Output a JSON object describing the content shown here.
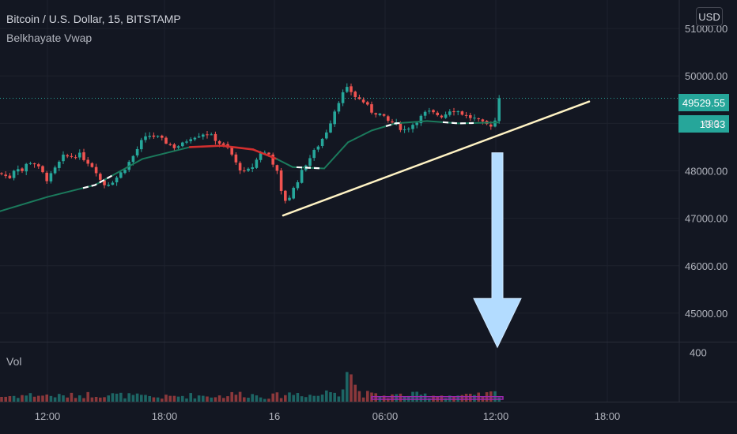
{
  "header": {
    "title": "Bitcoin / U.S. Dollar, 15, BITSTAMP",
    "indicator": "Belkhayate Vwap",
    "currency": "USD"
  },
  "volume_label": "Vol",
  "last_price_tag": "49529.55",
  "countdown_tag": "13:33",
  "countdown_hidden_price": "490",
  "colors": {
    "background": "#131722",
    "up": "#26a69a",
    "down": "#ef5350",
    "vwap_down": "#d32f2f",
    "trendline": "#fff3c4",
    "arrow": "#b3dcff"
  },
  "chart_data": {
    "type": "candlestick",
    "title": "Bitcoin / U.S. Dollar, 15, BITSTAMP",
    "price_axis": {
      "ticks": [
        "51000.00",
        "50000.00",
        "49000.00",
        "48000.00",
        "47000.00",
        "46000.00",
        "45000.00"
      ],
      "range": [
        44400,
        51600
      ],
      "last_price": 49529.55
    },
    "volume_axis": {
      "ticks": [
        "400"
      ],
      "range": [
        0,
        480
      ]
    },
    "time_axis": {
      "ticks": [
        "12:00",
        "18:00",
        "16",
        "06:00",
        "12:00",
        "18:00"
      ]
    },
    "price_path": [
      [
        0,
        47950
      ],
      [
        12,
        47850
      ],
      [
        20,
        48100
      ],
      [
        28,
        48000
      ],
      [
        36,
        48200
      ],
      [
        44,
        48150
      ],
      [
        52,
        48000
      ],
      [
        60,
        47800
      ],
      [
        70,
        48050
      ],
      [
        80,
        48300
      ],
      [
        90,
        48300
      ],
      [
        100,
        48350
      ],
      [
        110,
        48200
      ],
      [
        120,
        48050
      ],
      [
        130,
        47700
      ],
      [
        140,
        47750
      ],
      [
        150,
        47900
      ],
      [
        160,
        48100
      ],
      [
        170,
        48350
      ],
      [
        180,
        48650
      ],
      [
        190,
        48750
      ],
      [
        200,
        48700
      ],
      [
        210,
        48600
      ],
      [
        220,
        48500
      ],
      [
        230,
        48550
      ],
      [
        240,
        48700
      ],
      [
        250,
        48750
      ],
      [
        260,
        48800
      ],
      [
        270,
        48700
      ],
      [
        280,
        48550
      ],
      [
        290,
        48450
      ],
      [
        300,
        48100
      ],
      [
        310,
        47950
      ],
      [
        320,
        48100
      ],
      [
        330,
        48400
      ],
      [
        340,
        48350
      ],
      [
        350,
        48000
      ],
      [
        358,
        47350
      ],
      [
        366,
        47450
      ],
      [
        375,
        47750
      ],
      [
        385,
        48100
      ],
      [
        395,
        48350
      ],
      [
        405,
        48600
      ],
      [
        415,
        48900
      ],
      [
        425,
        49350
      ],
      [
        432,
        49600
      ],
      [
        440,
        49750
      ],
      [
        450,
        49550
      ],
      [
        460,
        49450
      ],
      [
        470,
        49250
      ],
      [
        480,
        49200
      ],
      [
        490,
        49050
      ],
      [
        500,
        49000
      ],
      [
        510,
        48850
      ],
      [
        520,
        48950
      ],
      [
        530,
        49100
      ],
      [
        540,
        49250
      ],
      [
        550,
        49200
      ],
      [
        560,
        49150
      ],
      [
        570,
        49300
      ],
      [
        580,
        49250
      ],
      [
        590,
        49150
      ],
      [
        600,
        49100
      ],
      [
        610,
        49000
      ],
      [
        620,
        48950
      ],
      [
        628,
        49100
      ],
      [
        636,
        49530
      ]
    ],
    "volume_path": [
      [
        0,
        40
      ],
      [
        40,
        55
      ],
      [
        80,
        45
      ],
      [
        120,
        60
      ],
      [
        160,
        50
      ],
      [
        200,
        35
      ],
      [
        240,
        50
      ],
      [
        280,
        45
      ],
      [
        300,
        65
      ],
      [
        320,
        55
      ],
      [
        340,
        40
      ],
      [
        360,
        60
      ],
      [
        380,
        70
      ],
      [
        400,
        45
      ],
      [
        420,
        90
      ],
      [
        430,
        80
      ],
      [
        440,
        330
      ],
      [
        450,
        110
      ],
      [
        460,
        65
      ],
      [
        480,
        45
      ],
      [
        520,
        55
      ],
      [
        560,
        50
      ],
      [
        600,
        45
      ],
      [
        628,
        70
      ],
      [
        636,
        60
      ]
    ],
    "vwap": [
      {
        "x": 0,
        "y": 47150
      },
      {
        "x": 60,
        "y": 47450
      },
      {
        "x": 120,
        "y": 47700
      },
      {
        "x": 180,
        "y": 48250
      },
      {
        "x": 240,
        "y": 48500
      },
      {
        "x": 280,
        "y": 48530,
        "down": true
      },
      {
        "x": 320,
        "y": 48450,
        "down": true
      },
      {
        "x": 350,
        "y": 48250,
        "down": true
      },
      {
        "x": 370,
        "y": 48080
      },
      {
        "x": 410,
        "y": 48050
      },
      {
        "x": 440,
        "y": 48600
      },
      {
        "x": 470,
        "y": 48850
      },
      {
        "x": 500,
        "y": 49000
      },
      {
        "x": 540,
        "y": 49050
      },
      {
        "x": 580,
        "y": 49000
      },
      {
        "x": 630,
        "y": 49020
      }
    ],
    "vwap_white_segments": [
      [
        105,
        145
      ],
      [
        375,
        405
      ],
      [
        488,
        510
      ],
      [
        560,
        600
      ]
    ],
    "trendline": [
      [
        358,
        47060
      ],
      [
        745,
        49460
      ]
    ],
    "arrow": {
      "x": 629,
      "from_price": 48380,
      "to_price": 44280
    },
    "volume_highlight": {
      "from_x": 470,
      "to_x": 636
    }
  }
}
